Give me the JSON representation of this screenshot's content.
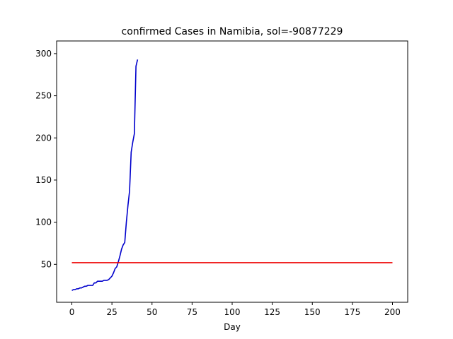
{
  "chart_data": {
    "type": "line",
    "title": "confirmed Cases in Namibia, sol=-90877229",
    "xlabel": "Day",
    "ylabel": "",
    "xlim": [
      -9.5,
      209.5
    ],
    "ylim": [
      5,
      315
    ],
    "xticks": [
      0,
      25,
      50,
      75,
      100,
      125,
      150,
      175,
      200
    ],
    "xtick_labels": [
      "0",
      "25",
      "50",
      "75",
      "100",
      "125",
      "150",
      "175",
      "200"
    ],
    "yticks": [
      50,
      100,
      150,
      200,
      250,
      300
    ],
    "ytick_labels": [
      "50",
      "100",
      "150",
      "200",
      "250",
      "300"
    ],
    "grid": false,
    "series": [
      {
        "color": "#0000cc",
        "x": [
          0,
          1,
          2,
          3,
          4,
          5,
          6,
          7,
          8,
          9,
          10,
          11,
          12,
          13,
          14,
          15,
          16,
          17,
          18,
          19,
          20,
          21,
          22,
          23,
          24,
          25,
          26,
          27,
          28,
          29,
          30,
          31,
          32,
          33,
          34,
          35,
          36,
          37,
          38,
          39,
          40,
          41
        ],
        "y": [
          19,
          20,
          20,
          21,
          21,
          22,
          22,
          23,
          24,
          24,
          25,
          25,
          25,
          25,
          28,
          28,
          30,
          30,
          30,
          30,
          31,
          31,
          31,
          32,
          34,
          36,
          40,
          45,
          47,
          53,
          60,
          68,
          73,
          76,
          100,
          120,
          137,
          183,
          195,
          205,
          285,
          293
        ]
      },
      {
        "color": "#ee0000",
        "x": [
          0,
          200
        ],
        "y": [
          52,
          52
        ]
      }
    ]
  }
}
